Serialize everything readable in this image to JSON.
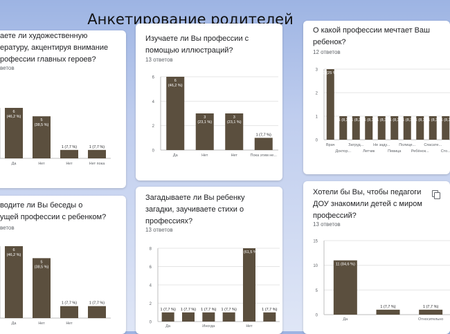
{
  "slide_title": "Анкетирование родителей",
  "cards": {
    "c1": {
      "question": "аете ли художественную\nературу, акцентируя внимание\nрофессии главных героев?",
      "count": "ветов",
      "values": [
        6,
        5,
        1,
        1
      ],
      "labels": [
        "6\n(46,2 %)",
        "5\n(38,5 %)",
        "1 (7,7 %)",
        "1 (7,7 %)"
      ],
      "categories": [
        "Да",
        "Нет",
        "Нет",
        "Нет пока"
      ],
      "yticks": []
    },
    "c2": {
      "question": "Изучаете ли Вы профессии с\nпомощью иллюстраций?",
      "count": "13 ответов",
      "values": [
        6,
        3,
        3,
        1
      ],
      "labels": [
        "6\n(46,2 %)",
        "3\n(23,1 %)",
        "3\n(23,1 %)",
        "1 (7,7 %)"
      ],
      "categories": [
        "Да",
        "Нет",
        "Нет",
        "Пока этим не..."
      ],
      "yticks": [
        0,
        2,
        4,
        6
      ]
    },
    "c3": {
      "question": "О какой профессии мечтает Ваш\nребенок?",
      "count": "12 ответов",
      "values": [
        3,
        1,
        1,
        1,
        1,
        1,
        1,
        1,
        1,
        1
      ],
      "labels": [
        "3 (25 %)",
        "1 (8,3",
        "1 (8,3",
        "1 (8,3",
        "1 (8,3",
        "1 (8,3",
        "1 (8,3",
        "1 (8,3",
        "1 (8,3",
        "1 (8,3"
      ],
      "categories_row1": [
        "Врач",
        "Затруд...",
        "Не заду...",
        "Полице...",
        "Спасате..."
      ],
      "categories_row2": [
        "Доктор...",
        "Летчик",
        "Певица",
        "Ребёнок...",
        "Сто..."
      ],
      "yticks": [
        0,
        1,
        2,
        3
      ]
    },
    "c4": {
      "question": "водите ли Вы беседы о\nущей профессии с ребенком?",
      "count": "ветов",
      "values": [
        6,
        5,
        1,
        1
      ],
      "labels": [
        "6\n(46,2 %)",
        "5\n(38,5 %)",
        "1 (7,7 %)",
        "1 (7,7 %)"
      ],
      "categories": [
        "Да",
        "Нет",
        "Нет",
        ""
      ],
      "yticks": []
    },
    "c5": {
      "question": "Загадываете ли Вы ребенку\nзагадки, заучиваете стихи о\nпрофессиях?",
      "count": "13 ответов",
      "values": [
        1,
        1,
        1,
        1,
        8,
        1
      ],
      "labels": [
        "1 (7,7 %)",
        "1 (7,7 %)",
        "1 (7,7 %)",
        "1 (7,7 %)",
        "8 (61,5 %)",
        "1 (7,7 %)"
      ],
      "categories": [
        "Да",
        "",
        "Иногда",
        "",
        "Нет",
        ""
      ],
      "yticks": [
        0,
        2,
        4,
        6,
        8
      ]
    },
    "c6": {
      "question": "Хотели бы Вы, чтобы педагоги\nДОУ знакомили детей с миром\nпрофессий?",
      "count": "13 ответов",
      "values": [
        11,
        1,
        1
      ],
      "labels": [
        "11 (84,6 %)",
        "1 (7,7 %)",
        "1 (7,7 %)"
      ],
      "categories": [
        "Да",
        "",
        "Относительно"
      ],
      "yticks": [
        0,
        5,
        10,
        15
      ]
    }
  },
  "colors": {
    "bar": "#5b4f3e",
    "axis": "#bdbdbd",
    "grid": "#e4e4e4",
    "text": "#202124",
    "muted": "#5f6368"
  },
  "icons": {
    "copy": "copy-icon"
  }
}
